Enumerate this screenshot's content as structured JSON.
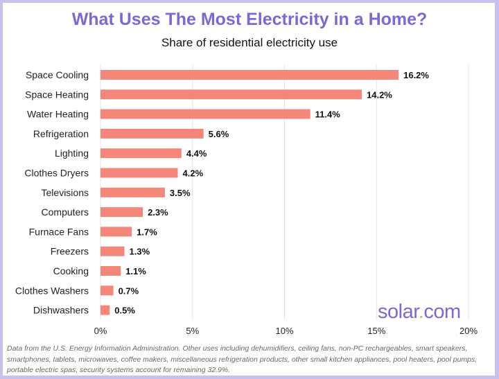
{
  "chart_data": {
    "type": "bar",
    "orientation": "horizontal",
    "title": "What Uses The Most Electricity in a Home?",
    "subtitle": "Share of residential electricity use",
    "categories": [
      "Space Cooling",
      "Space Heating",
      "Water Heating",
      "Refrigeration",
      "Lighting",
      "Clothes Dryers",
      "Televisions",
      "Computers",
      "Furnace Fans",
      "Freezers",
      "Cooking",
      "Clothes Washers",
      "Dishwashers"
    ],
    "values": [
      16.2,
      14.2,
      11.4,
      5.6,
      4.4,
      4.2,
      3.5,
      2.3,
      1.7,
      1.3,
      1.1,
      0.7,
      0.5
    ],
    "data_labels": [
      "16.2%",
      "14.2%",
      "11.4%",
      "5.6%",
      "4.4%",
      "4.2%",
      "3.5%",
      "2.3%",
      "1.7%",
      "1.3%",
      "1.1%",
      "0.7%",
      "0.5%"
    ],
    "xlim": [
      0,
      20
    ],
    "x_ticks": [
      0,
      5,
      10,
      15,
      20
    ],
    "x_tick_labels": [
      "0%",
      "5%",
      "10%",
      "15%",
      "20%"
    ],
    "grid": "vertical",
    "bar_color": "#f4877a",
    "title_color": "#7b68d6"
  },
  "logo": {
    "name": "solar",
    "dot": ".",
    "tld": "com"
  },
  "footnote": "Data from the U.S. Energy Information Administration. Other uses including dehumidifiers, ceiling fans, non-PC rechargeables, smart speakers, smartphones, tablets, microwaves, coffee makers, miscellaneous refrigeration products, other small kitchen appliances, pool heaters, pool pumps, portable electric spas, security systems account for remaining 32.9%."
}
